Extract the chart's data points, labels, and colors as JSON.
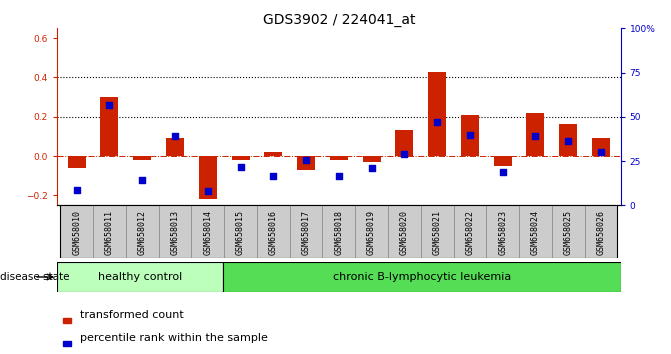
{
  "title": "GDS3902 / 224041_at",
  "samples": [
    "GSM658010",
    "GSM658011",
    "GSM658012",
    "GSM658013",
    "GSM658014",
    "GSM658015",
    "GSM658016",
    "GSM658017",
    "GSM658018",
    "GSM658019",
    "GSM658020",
    "GSM658021",
    "GSM658022",
    "GSM658023",
    "GSM658024",
    "GSM658025",
    "GSM658026"
  ],
  "transformed_count": [
    -0.06,
    0.3,
    -0.02,
    0.09,
    -0.22,
    -0.02,
    0.02,
    -0.07,
    -0.02,
    -0.03,
    0.135,
    0.43,
    0.21,
    -0.05,
    0.22,
    0.165,
    0.09
  ],
  "percentile_rank": [
    0.085,
    0.565,
    0.145,
    0.39,
    0.08,
    0.215,
    0.165,
    0.255,
    0.165,
    0.21,
    0.29,
    0.47,
    0.4,
    0.19,
    0.39,
    0.365,
    0.3
  ],
  "healthy_control_count": 5,
  "bar_color": "#cc2200",
  "scatter_color": "#0000cc",
  "bar_width": 0.55,
  "ylim_left": [
    -0.25,
    0.65
  ],
  "ylim_right": [
    0.0,
    1.0
  ],
  "yticks_left": [
    -0.2,
    0.0,
    0.2,
    0.4,
    0.6
  ],
  "yticks_right": [
    0.0,
    0.25,
    0.5,
    0.75,
    1.0
  ],
  "ytick_labels_right": [
    "0",
    "25",
    "50",
    "75",
    "100%"
  ],
  "hline_values": [
    0.2,
    0.4
  ],
  "zero_line_color": "#cc2200",
  "healthy_control_label": "healthy control",
  "leukemia_label": "chronic B-lymphocytic leukemia",
  "disease_state_label": "disease state",
  "legend_bar_label": "transformed count",
  "legend_scatter_label": "percentile rank within the sample",
  "healthy_bg": "#bbffbb",
  "leukemia_bg": "#55dd55",
  "xlabel_box_color": "#cccccc",
  "xlabel_box_edge": "#888888",
  "background_color": "#ffffff",
  "title_fontsize": 10,
  "tick_fontsize": 6.5,
  "label_fontsize": 8,
  "sample_label_fontsize": 6
}
